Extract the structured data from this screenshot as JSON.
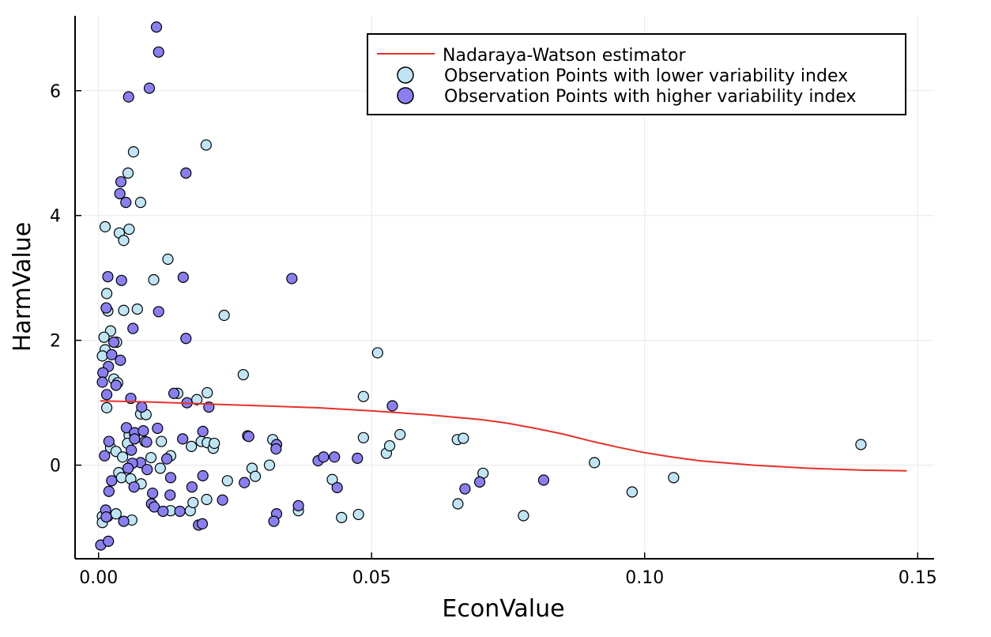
{
  "chart_data": {
    "type": "scatter",
    "xlabel": "EconValue",
    "ylabel": "HarmValue",
    "xlim": [
      -0.0043,
      0.153
    ],
    "ylim": [
      -1.5,
      7.2
    ],
    "xticks": [
      0.0,
      0.05,
      0.1,
      0.15
    ],
    "xtick_labels": [
      "0.00",
      "0.05",
      "0.10",
      "0.15"
    ],
    "yticks": [
      0,
      2,
      4,
      6
    ],
    "ytick_labels": [
      "0",
      "2",
      "4",
      "6"
    ],
    "grid": true,
    "legend_position": "top-right",
    "colors": {
      "line": "#e5312a",
      "low": "#bfe5f5",
      "high": "#8a7ff0",
      "grid": "#e8e8e8"
    },
    "series": [
      {
        "name": "Nadaraya-Watson estimator",
        "kind": "line",
        "x": [
          0.0003,
          0.01,
          0.02,
          0.03,
          0.04,
          0.05,
          0.06,
          0.07,
          0.075,
          0.08,
          0.085,
          0.09,
          0.095,
          0.1,
          0.105,
          0.11,
          0.12,
          0.13,
          0.14,
          0.148
        ],
        "y": [
          1.03,
          1.01,
          0.98,
          0.95,
          0.92,
          0.87,
          0.81,
          0.73,
          0.67,
          0.59,
          0.5,
          0.39,
          0.29,
          0.2,
          0.13,
          0.07,
          0.0,
          -0.05,
          -0.08,
          -0.09
        ]
      },
      {
        "name": "Observation Points with lower variability index",
        "kind": "scatter",
        "points": [
          [
            0.0012,
            3.82
          ],
          [
            0.0015,
            2.75
          ],
          [
            0.0017,
            2.47
          ],
          [
            0.0022,
            2.15
          ],
          [
            0.001,
            2.05
          ],
          [
            0.0012,
            1.85
          ],
          [
            0.0007,
            1.75
          ],
          [
            0.0033,
            1.97
          ],
          [
            0.0028,
            1.38
          ],
          [
            0.0035,
            1.32
          ],
          [
            0.0015,
            0.92
          ],
          [
            0.0022,
            0.28
          ],
          [
            0.0032,
            0.22
          ],
          [
            0.0044,
            0.13
          ],
          [
            0.0007,
            -0.82
          ],
          [
            0.0007,
            -0.92
          ],
          [
            0.0017,
            -0.82
          ],
          [
            0.0032,
            -0.78
          ],
          [
            0.0037,
            -0.12
          ],
          [
            0.0042,
            -0.2
          ],
          [
            0.0038,
            3.72
          ],
          [
            0.0046,
            3.6
          ],
          [
            0.0056,
            3.78
          ],
          [
            0.0054,
            4.68
          ],
          [
            0.0064,
            5.02
          ],
          [
            0.0077,
            4.21
          ],
          [
            0.0046,
            2.48
          ],
          [
            0.0071,
            2.5
          ],
          [
            0.0077,
            0.82
          ],
          [
            0.0087,
            0.81
          ],
          [
            0.0056,
            0.48
          ],
          [
            0.0066,
            0.5
          ],
          [
            0.0085,
            0.38
          ],
          [
            0.0053,
            0.35
          ],
          [
            0.0096,
            0.12
          ],
          [
            0.0078,
            -0.3
          ],
          [
            0.0059,
            -0.22
          ],
          [
            0.0061,
            -0.88
          ],
          [
            0.0101,
            2.97
          ],
          [
            0.0127,
            3.3
          ],
          [
            0.0115,
            0.38
          ],
          [
            0.0113,
            -0.05
          ],
          [
            0.0132,
            0.15
          ],
          [
            0.0132,
            -0.73
          ],
          [
            0.0145,
            1.15
          ],
          [
            0.0168,
            -0.73
          ],
          [
            0.0173,
            -0.6
          ],
          [
            0.017,
            0.3
          ],
          [
            0.018,
            1.05
          ],
          [
            0.0188,
            0.38
          ],
          [
            0.0199,
            0.36
          ],
          [
            0.021,
            0.27
          ],
          [
            0.0212,
            0.35
          ],
          [
            0.0198,
            -0.55
          ],
          [
            0.0199,
            1.16
          ],
          [
            0.0197,
            5.13
          ],
          [
            0.023,
            2.4
          ],
          [
            0.0236,
            -0.25
          ],
          [
            0.0265,
            1.45
          ],
          [
            0.0273,
            0.47
          ],
          [
            0.0281,
            -0.05
          ],
          [
            0.0287,
            -0.18
          ],
          [
            0.0313,
            0.0
          ],
          [
            0.0319,
            0.41
          ],
          [
            0.0366,
            -0.73
          ],
          [
            0.0428,
            -0.23
          ],
          [
            0.0445,
            -0.84
          ],
          [
            0.0476,
            -0.79
          ],
          [
            0.0485,
            1.1
          ],
          [
            0.0485,
            0.44
          ],
          [
            0.0511,
            1.8
          ],
          [
            0.0527,
            0.19
          ],
          [
            0.0533,
            0.31
          ],
          [
            0.0552,
            0.49
          ],
          [
            0.0657,
            0.41
          ],
          [
            0.0658,
            -0.62
          ],
          [
            0.0668,
            0.43
          ],
          [
            0.0704,
            -0.13
          ],
          [
            0.0778,
            -0.81
          ],
          [
            0.0908,
            0.04
          ],
          [
            0.0977,
            -0.43
          ],
          [
            0.1053,
            -0.2
          ],
          [
            0.1396,
            0.33
          ]
        ]
      },
      {
        "name": "Observation Points with higher variability index",
        "kind": "scatter",
        "points": [
          [
            0.0106,
            7.02
          ],
          [
            0.011,
            6.62
          ],
          [
            0.0093,
            6.04
          ],
          [
            0.0055,
            5.9
          ],
          [
            0.0041,
            4.54
          ],
          [
            0.0039,
            4.35
          ],
          [
            0.005,
            4.21
          ],
          [
            0.016,
            4.68
          ],
          [
            0.0155,
            3.01
          ],
          [
            0.0354,
            2.99
          ],
          [
            0.0017,
            3.02
          ],
          [
            0.0042,
            2.96
          ],
          [
            0.0014,
            2.52
          ],
          [
            0.011,
            2.46
          ],
          [
            0.0063,
            2.19
          ],
          [
            0.016,
            2.03
          ],
          [
            0.0028,
            1.97
          ],
          [
            0.0024,
            1.77
          ],
          [
            0.004,
            1.68
          ],
          [
            0.0018,
            1.58
          ],
          [
            0.0008,
            1.48
          ],
          [
            0.0007,
            1.33
          ],
          [
            0.0032,
            1.28
          ],
          [
            0.0015,
            1.13
          ],
          [
            0.0059,
            1.07
          ],
          [
            0.0138,
            1.15
          ],
          [
            0.0162,
            1.0
          ],
          [
            0.0202,
            0.93
          ],
          [
            0.0538,
            0.95
          ],
          [
            0.0079,
            0.93
          ],
          [
            0.0051,
            0.6
          ],
          [
            0.0066,
            0.52
          ],
          [
            0.0082,
            0.55
          ],
          [
            0.0108,
            0.59
          ],
          [
            0.0066,
            0.42
          ],
          [
            0.0088,
            0.37
          ],
          [
            0.0019,
            0.38
          ],
          [
            0.0154,
            0.42
          ],
          [
            0.0191,
            0.54
          ],
          [
            0.0275,
            0.46
          ],
          [
            0.0326,
            0.33
          ],
          [
            0.0325,
            0.26
          ],
          [
            0.006,
            0.24
          ],
          [
            0.0011,
            0.15
          ],
          [
            0.0125,
            0.1
          ],
          [
            0.0077,
            0.04
          ],
          [
            0.0062,
            0.03
          ],
          [
            0.0402,
            0.07
          ],
          [
            0.0412,
            0.13
          ],
          [
            0.0432,
            0.13
          ],
          [
            0.0474,
            0.11
          ],
          [
            0.0054,
            -0.05
          ],
          [
            0.0089,
            -0.07
          ],
          [
            0.0024,
            -0.25
          ],
          [
            0.0132,
            -0.2
          ],
          [
            0.0191,
            -0.17
          ],
          [
            0.0267,
            -0.28
          ],
          [
            0.0698,
            -0.27
          ],
          [
            0.0815,
            -0.24
          ],
          [
            0.0437,
            -0.36
          ],
          [
            0.0671,
            -0.38
          ],
          [
            0.0019,
            -0.42
          ],
          [
            0.0099,
            -0.45
          ],
          [
            0.0065,
            -0.35
          ],
          [
            0.0131,
            -0.48
          ],
          [
            0.0171,
            -0.35
          ],
          [
            0.0097,
            -0.62
          ],
          [
            0.0102,
            -0.67
          ],
          [
            0.0118,
            -0.74
          ],
          [
            0.0149,
            -0.74
          ],
          [
            0.0227,
            -0.56
          ],
          [
            0.0326,
            -0.78
          ],
          [
            0.0366,
            -0.65
          ],
          [
            0.0321,
            -0.9
          ],
          [
            0.0013,
            -0.72
          ],
          [
            0.0014,
            -0.83
          ],
          [
            0.0046,
            -0.9
          ],
          [
            0.0183,
            -0.96
          ],
          [
            0.019,
            -0.94
          ],
          [
            0.0004,
            -1.28
          ],
          [
            0.0018,
            -1.22
          ]
        ]
      }
    ]
  }
}
